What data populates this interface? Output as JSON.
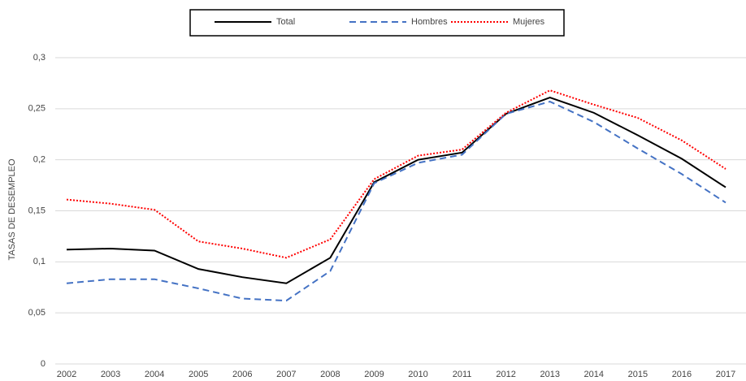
{
  "chart_data": {
    "type": "line",
    "y_label": "TASAS DE DESEMPLEO",
    "categories": [
      "2002",
      "2003",
      "2004",
      "2005",
      "2006",
      "2007",
      "2008",
      "2009",
      "2010",
      "2011",
      "2012",
      "2013",
      "2014",
      "2015",
      "2016",
      "2017"
    ],
    "series": [
      {
        "name": "Total",
        "color": "#000000",
        "dash": "solid",
        "values": [
          0.112,
          0.113,
          0.111,
          0.093,
          0.085,
          0.079,
          0.104,
          0.178,
          0.2,
          0.207,
          0.245,
          0.261,
          0.246,
          0.224,
          0.201,
          0.173
        ]
      },
      {
        "name": "Hombres",
        "color": "#4472c4",
        "dash": "dashed",
        "values": [
          0.079,
          0.083,
          0.083,
          0.074,
          0.064,
          0.062,
          0.091,
          0.177,
          0.197,
          0.205,
          0.245,
          0.257,
          0.237,
          0.211,
          0.186,
          0.158
        ]
      },
      {
        "name": "Mujeres",
        "color": "#ff0000",
        "dash": "dotted",
        "values": [
          0.161,
          0.157,
          0.151,
          0.12,
          0.113,
          0.104,
          0.122,
          0.181,
          0.204,
          0.21,
          0.246,
          0.268,
          0.254,
          0.241,
          0.219,
          0.191
        ]
      }
    ],
    "ylim": [
      0,
      0.3
    ],
    "yticks": [
      0,
      {
        "value": 0.05,
        "label": "0,05"
      },
      {
        "value": 0.1,
        "label": "0,1"
      },
      {
        "value": 0.15,
        "label": "0,15"
      },
      {
        "value": 0.2,
        "label": "0,2"
      },
      {
        "value": 0.25,
        "label": "0,25"
      },
      {
        "value": 0.3,
        "label": "0,3"
      }
    ],
    "grid": true,
    "legend": "top"
  }
}
